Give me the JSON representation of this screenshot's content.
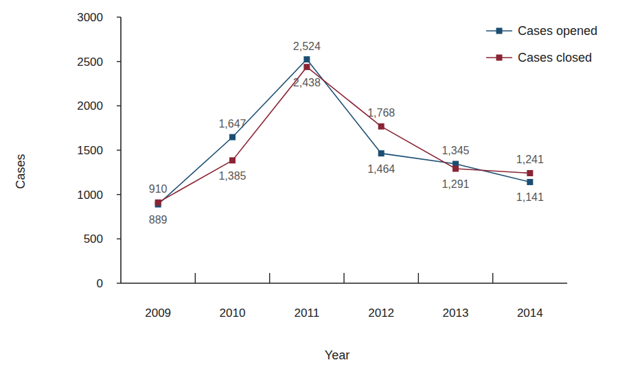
{
  "chart_data": {
    "type": "line",
    "x_label": "Year",
    "y_label": "Cases",
    "categories": [
      "2009",
      "2010",
      "2011",
      "2012",
      "2013",
      "2014"
    ],
    "series": [
      {
        "name": "Cases opened",
        "color": "#1c4e73",
        "marker": "square",
        "line_style": "solid",
        "values": [
          889,
          1647,
          2524,
          1464,
          1345,
          1141
        ],
        "value_labels": [
          "889",
          "1,647",
          "2,524",
          "1,464",
          "1,345",
          "1,141"
        ]
      },
      {
        "name": "Cases closed",
        "color": "#8a2434",
        "marker": "square",
        "line_style": "solid",
        "values": [
          910,
          1385,
          2438,
          1768,
          1291,
          1241
        ],
        "value_labels": [
          "910",
          "1,385",
          "2,438",
          "1,768",
          "1,291",
          "1,241"
        ]
      }
    ],
    "ylim": [
      0,
      3000
    ],
    "yticks": [
      0,
      500,
      1000,
      1500,
      2000,
      2500,
      3000
    ],
    "grid": false,
    "legend": "top-right",
    "data_labels": true
  }
}
